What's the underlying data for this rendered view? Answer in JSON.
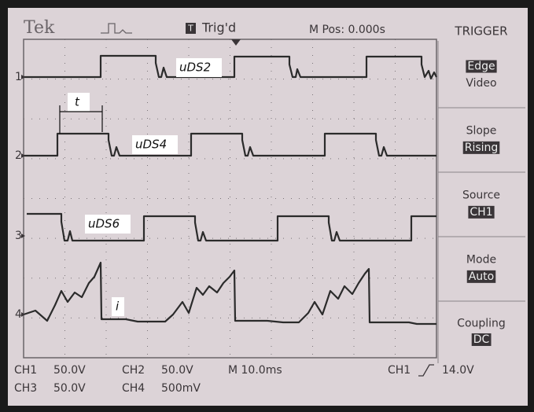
{
  "header": {
    "brand": "Tek",
    "status": "Trig'd",
    "position": "M Pos: 0.000s",
    "menu_title": "TRIGGER"
  },
  "menu": [
    {
      "lines": [
        "Edge",
        "Video"
      ]
    },
    {
      "label": "Slope",
      "value": "Rising"
    },
    {
      "label": "Source",
      "value": "CH1"
    },
    {
      "label": "Mode",
      "value": "Auto"
    },
    {
      "label": "Coupling",
      "value": "DC"
    }
  ],
  "channels": [
    "1",
    "2",
    "3",
    "4"
  ],
  "traces": [
    "uDS2",
    "uDS4",
    "uDS6",
    "i"
  ],
  "interval_label": "t",
  "footer": [
    [
      "CH1",
      "50.0V",
      "CH2",
      "50.0V",
      "M 10.0ms",
      "CH1",
      "14.0V"
    ],
    [
      "CH3",
      "50.0V",
      "CH4",
      "500mV"
    ]
  ]
}
